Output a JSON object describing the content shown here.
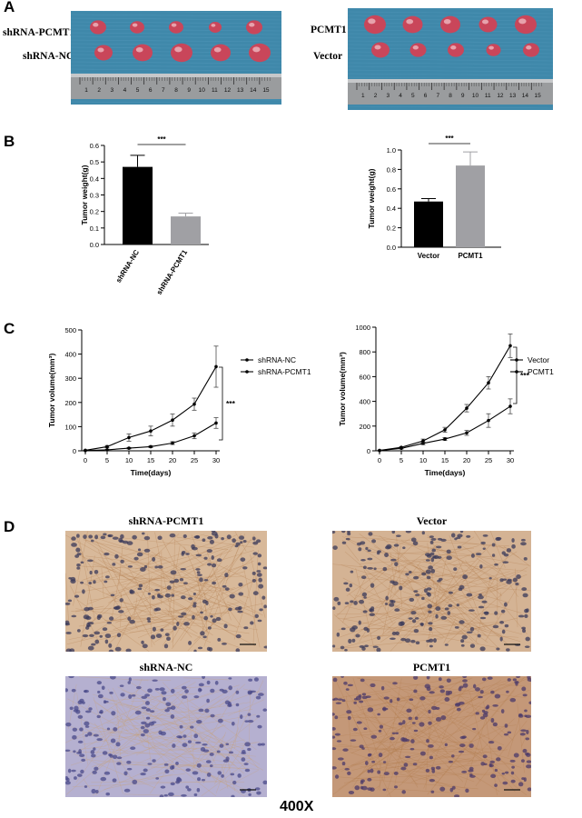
{
  "panels": {
    "a": "A",
    "b": "B",
    "c": "C",
    "d": "D"
  },
  "photos": {
    "left": {
      "label_top": "shRNA-PCMT1",
      "label_bottom": "shRNA-NC",
      "tumor_color": "#c9465a",
      "mat_color": "#3f88aa",
      "ruler_numbers": [
        "1",
        "2",
        "3",
        "4",
        "5",
        "6",
        "7",
        "8",
        "9",
        "10",
        "11",
        "12",
        "13",
        "14",
        "15"
      ]
    },
    "right": {
      "label_top": "PCMT1",
      "label_bottom": "Vector",
      "tumor_color": "#c9465a",
      "mat_color": "#3f88aa",
      "ruler_numbers": [
        "1",
        "2",
        "3",
        "4",
        "5",
        "6",
        "7",
        "8",
        "9",
        "10",
        "11",
        "12",
        "13",
        "14",
        "15"
      ]
    }
  },
  "ihc": {
    "titles": [
      "shRNA-PCMT1",
      "Vector",
      "shRNA-NC",
      "PCMT1"
    ],
    "stain_colors": [
      "#d8b99a",
      "#d4b394",
      "#b5b0d0",
      "#c49878"
    ],
    "magnification": "400X"
  },
  "chart_data": [
    {
      "type": "bar",
      "id": "B-left",
      "categories": [
        "shRNA-NC",
        "shRNA-PCMT1"
      ],
      "values": [
        0.47,
        0.17
      ],
      "errors": [
        0.07,
        0.02
      ],
      "colors": [
        "#000000",
        "#a0a0a4"
      ],
      "ylabel": "Tumor weight(g)",
      "ylim": [
        0,
        0.6
      ],
      "yticks": [
        "0.0",
        "0.1",
        "0.2",
        "0.3",
        "0.4",
        "0.5",
        "0.6"
      ],
      "significance": "***"
    },
    {
      "type": "bar",
      "id": "B-right",
      "categories": [
        "Vector",
        "PCMT1"
      ],
      "values": [
        0.47,
        0.84
      ],
      "errors": [
        0.03,
        0.14
      ],
      "colors": [
        "#000000",
        "#a0a0a4"
      ],
      "ylabel": "Tumor weight(g)",
      "ylim": [
        0,
        1.0
      ],
      "yticks": [
        "0.0",
        "0.2",
        "0.4",
        "0.6",
        "0.8",
        "1.0"
      ],
      "significance": "***"
    },
    {
      "type": "line",
      "id": "C-left",
      "x": [
        0,
        5,
        10,
        15,
        20,
        25,
        30
      ],
      "series": [
        {
          "name": "shRNA-NC",
          "values": [
            2,
            17,
            55,
            82,
            127,
            193,
            348
          ],
          "errors": [
            1,
            5,
            15,
            20,
            25,
            25,
            85
          ]
        },
        {
          "name": "shRNA-PCMT1",
          "values": [
            1,
            4,
            11,
            17,
            32,
            62,
            115
          ],
          "errors": [
            0,
            2,
            3,
            4,
            6,
            12,
            22
          ]
        }
      ],
      "xlabel": "Time(days)",
      "ylabel": "Tumor volume(mm³)",
      "ylim": [
        0,
        500
      ],
      "yticks": [
        "0",
        "100",
        "200",
        "300",
        "400",
        "500"
      ],
      "xticks": [
        "0",
        "5",
        "10",
        "15",
        "20",
        "25",
        "30"
      ],
      "significance": "***"
    },
    {
      "type": "line",
      "id": "C-right",
      "x": [
        0,
        5,
        10,
        15,
        20,
        25,
        30
      ],
      "series": [
        {
          "name": "Vector",
          "values": [
            2,
            20,
            60,
            95,
            145,
            245,
            360
          ],
          "errors": [
            1,
            5,
            10,
            12,
            20,
            55,
            60
          ]
        },
        {
          "name": "PCMT1",
          "values": [
            3,
            28,
            80,
            170,
            345,
            550,
            850
          ],
          "errors": [
            1,
            6,
            15,
            20,
            30,
            50,
            95
          ]
        }
      ],
      "xlabel": "Time(days)",
      "ylabel": "Tumor volume(mm³)",
      "ylim": [
        0,
        1000
      ],
      "yticks": [
        "0",
        "200",
        "400",
        "600",
        "800",
        "1000"
      ],
      "xticks": [
        "0",
        "5",
        "10",
        "15",
        "20",
        "25",
        "30"
      ],
      "significance": "***"
    }
  ]
}
